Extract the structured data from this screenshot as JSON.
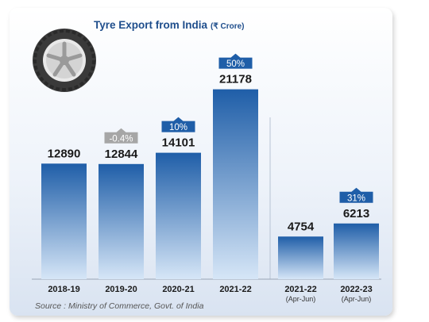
{
  "chart_data": {
    "type": "bar",
    "title": "Tyre Export from India",
    "unit_label": "(₹ Crore)",
    "categories": [
      "2018-19",
      "2019-20",
      "2020-21",
      "2021-22",
      "2021-22",
      "2022-23"
    ],
    "sub_labels": [
      "",
      "",
      "",
      "",
      "(Apr-Jun)",
      "(Apr-Jun)"
    ],
    "values": [
      12890,
      12844,
      14101,
      21178,
      4754,
      6213
    ],
    "growth_labels": [
      "",
      "-0.4%",
      "10%",
      "50%",
      "",
      "31%"
    ],
    "growth_badge_colors": [
      "",
      "#a6a6a6",
      "#1f5ea8",
      "#1f5ea8",
      "",
      "#1f5ea8"
    ],
    "source": "Source : Ministry of Commerce, Govt. of India",
    "ylim": [
      0,
      23000
    ],
    "grid": false,
    "bar_color_top": "#1f5ea8",
    "bar_color_bottom": "#d6e6f7"
  },
  "icons": {
    "tyre": "tyre-icon"
  }
}
